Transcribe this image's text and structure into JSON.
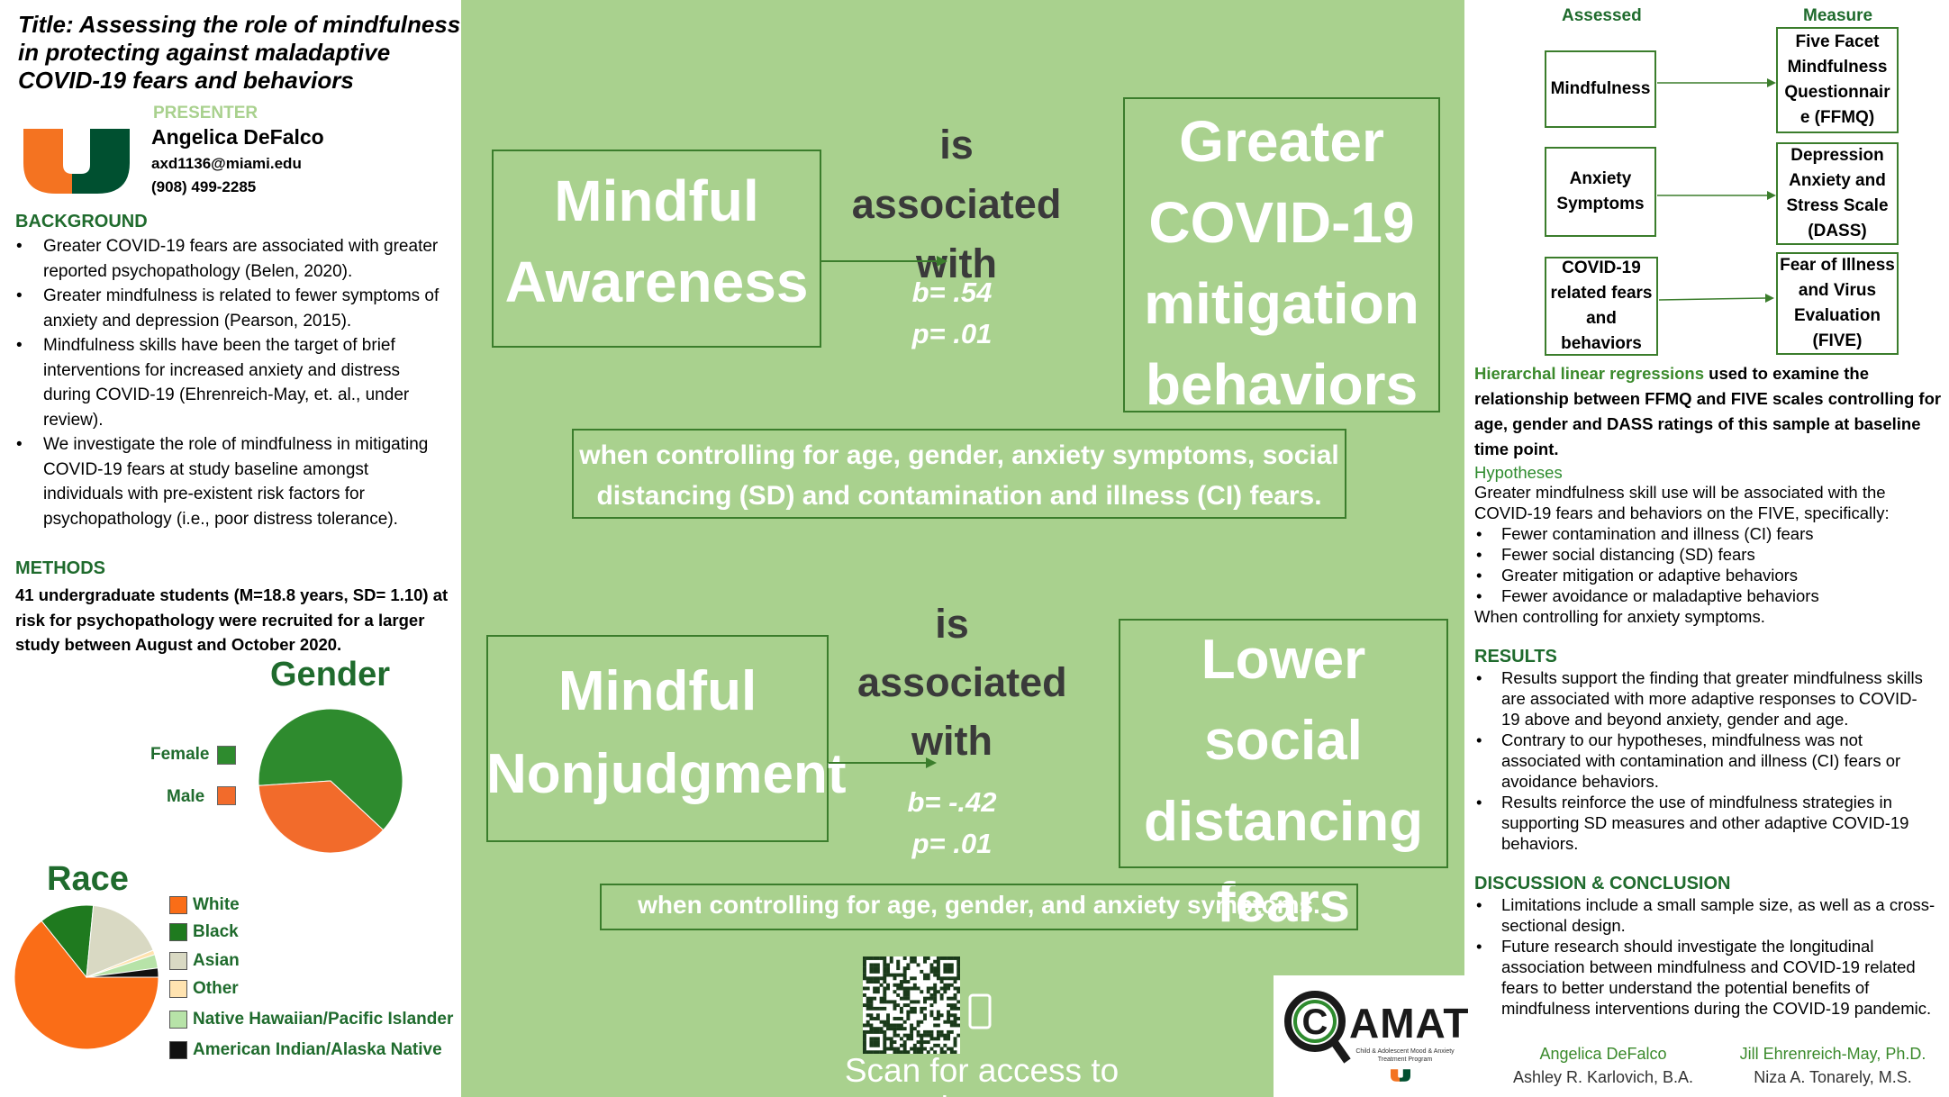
{
  "title": {
    "line1": "Title: Assessing the role of mindfulness",
    "line2": "in protecting against maladaptive",
    "line3": "COVID-19 fears and behaviors"
  },
  "presenter": {
    "label": "PRESENTER",
    "name": "Angelica DeFalco",
    "email": "axd1136@miami.edu",
    "phone": "(908) 499-2285"
  },
  "background": {
    "heading": "BACKGROUND",
    "bullets": [
      "Greater COVID-19 fears are associated with greater reported psychopathology (Belen, 2020).",
      "Greater mindfulness is related to fewer symptoms of anxiety and depression (Pearson, 2015).",
      "Mindfulness skills have been the target of brief interventions for increased anxiety and distress during COVID-19 (Ehrenreich-May, et. al., under review).",
      "We investigate the role of mindfulness in mitigating COVID-19 fears at study baseline amongst individuals with pre-existent risk factors for psychopathology (i.e., poor distress tolerance)."
    ]
  },
  "methods": {
    "heading": "METHODS",
    "text": "41 undergraduate students (M=18.8 years, SD= 1.10) at risk for psychopathology were recruited for a larger study between August and October 2020."
  },
  "chart_data": [
    {
      "type": "pie",
      "title": "Gender",
      "categories": [
        "Female",
        "Male"
      ],
      "values": [
        63,
        37
      ],
      "colors": [
        "#2e8b2e",
        "#f26b2b"
      ]
    },
    {
      "type": "pie",
      "title": "Race",
      "categories": [
        "White",
        "Black",
        "Asian",
        "Other",
        "Native Hawaiian/Pacific Islander",
        "American Indian/Alaska Native"
      ],
      "values": [
        63,
        12,
        17,
        1,
        3,
        2
      ],
      "colors": [
        "#fa6d17",
        "#1f7a1f",
        "#d9d9c3",
        "#ffe3b0",
        "#b7e3a8",
        "#111111"
      ]
    }
  ],
  "finding1": {
    "predictor": [
      "Mindful",
      "Awareness"
    ],
    "assoc": [
      "is associated",
      "with"
    ],
    "b": "b= .54",
    "p": "p= .01",
    "outcome": [
      "Greater",
      "COVID-19",
      "mitigation",
      "behaviors"
    ],
    "control": [
      "when controlling for age, gender, anxiety symptoms, social",
      "distancing (SD) and contamination and illness (CI) fears."
    ]
  },
  "finding2": {
    "predictor": [
      "Mindful",
      "Nonjudgment"
    ],
    "assoc": [
      "is",
      "associated",
      "with"
    ],
    "b": "b= -.42",
    "p": "p= .01",
    "outcome": [
      "Lower social",
      "distancing",
      "fears"
    ],
    "control": "when controlling for age, gender, and anxiety symptoms."
  },
  "qr": {
    "caption": "Scan for access to abstract"
  },
  "logo_camat": {
    "text": "CAMAT",
    "subtitle": "Child & Adolescent Mood & Anxiety Treatment Program"
  },
  "measures": {
    "col_assessed": "Assessed",
    "col_measure": "Measure",
    "rows": [
      {
        "assessed": [
          "Mindfulness"
        ],
        "measure": [
          "Five Facet",
          "Mindfulness",
          "Questionnair",
          "e (FFMQ)"
        ]
      },
      {
        "assessed": [
          "Anxiety",
          "Symptoms"
        ],
        "measure": [
          "Depression",
          "Anxiety and",
          "Stress Scale",
          "(DASS)"
        ]
      },
      {
        "assessed": [
          "COVID-19",
          "related fears",
          "and behaviors"
        ],
        "measure": [
          "Fear of Illness",
          "and Virus",
          "Evaluation",
          "(FIVE)"
        ]
      }
    ]
  },
  "analysis": {
    "highlight": "Hierarchal linear regressions",
    "rest": " used to examine the relationship between FFMQ and FIVE scales controlling for age, gender and DASS ratings of this sample at baseline time point."
  },
  "hypotheses": {
    "heading": "Hypotheses",
    "intro": "Greater mindfulness skill use will be associated with the COVID-19 fears and behaviors on the FIVE, specifically:",
    "bullets": [
      "Fewer contamination and illness (CI) fears",
      "Fewer social distancing (SD) fears",
      "Greater mitigation or adaptive behaviors",
      "Fewer avoidance or maladaptive behaviors"
    ],
    "outro": "When controlling for anxiety symptoms."
  },
  "results": {
    "heading": "RESULTS",
    "bullets": [
      "Results support the finding that greater mindfulness skills are associated with more adaptive responses to COVID-19 above and beyond anxiety, gender and age.",
      "Contrary to our hypotheses, mindfulness was not associated with contamination and illness (CI) fears or avoidance behaviors.",
      "Results reinforce the use of mindfulness strategies in supporting SD measures and other adaptive COVID-19 behaviors."
    ]
  },
  "discussion": {
    "heading": "DISCUSSION & CONCLUSION",
    "bullets": [
      "Limitations include a small sample size, as well as a cross-sectional design.",
      "Future research should investigate the longitudinal association between mindfulness and COVID-19 related fears to better understand the potential benefits of mindfulness interventions during the COVID-19 pandemic."
    ]
  },
  "authors": {
    "a1": "Angelica DeFalco",
    "a2": "Ashley R. Karlovich, B.A.",
    "a3": "Jill Ehrenreich-May, Ph.D.",
    "a4": "Niza A. Tonarely, M.S."
  }
}
